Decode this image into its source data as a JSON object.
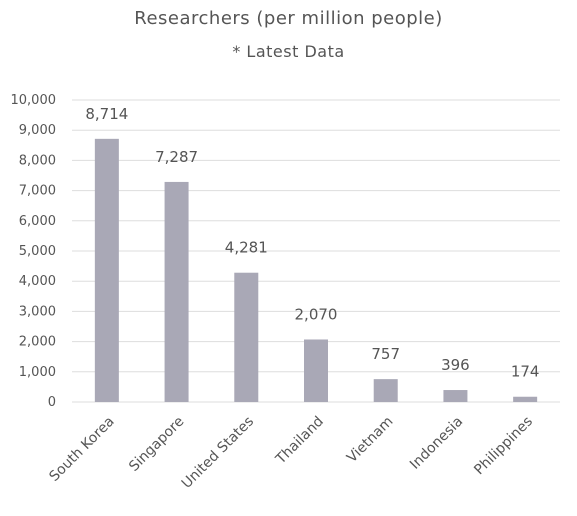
{
  "chart_data": {
    "type": "bar",
    "title": "Researchers (per million people)",
    "subtitle": "* Latest Data",
    "categories": [
      "South Korea",
      "Singapore",
      "United States",
      "Thailand",
      "Vietnam",
      "Indonesia",
      "Philippines"
    ],
    "values": [
      8714,
      7287,
      4281,
      2070,
      757,
      396,
      174
    ],
    "value_labels": [
      "8,714",
      "7,287",
      "4,281",
      "2,070",
      "757",
      "396",
      "174"
    ],
    "y_ticks": [
      "0",
      "1,000",
      "2,000",
      "3,000",
      "4,000",
      "5,000",
      "6,000",
      "7,000",
      "8,000",
      "9,000",
      "10,000"
    ],
    "ylim": [
      0,
      10000
    ],
    "grid": true,
    "legend": "none",
    "colors": {
      "bar": "#a9a8b6",
      "grid": "#dddddd",
      "text": "#555555"
    }
  }
}
